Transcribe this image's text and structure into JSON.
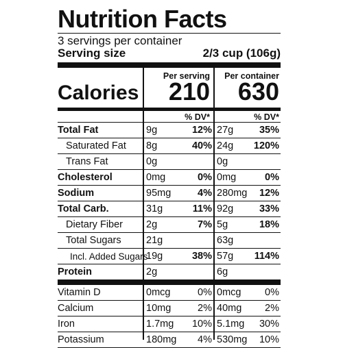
{
  "title": "Nutrition Facts",
  "servings_per_container": "3 servings per container",
  "serving_size_label": "Serving size",
  "serving_size_value": "2/3 cup (106g)",
  "columns": {
    "per_serving": "Per serving",
    "per_container": "Per container"
  },
  "calories": {
    "label": "Calories",
    "per_serving": "210",
    "per_container": "630"
  },
  "dv_header": "% DV*",
  "nutrients": [
    {
      "name": "Total Fat",
      "bold": true,
      "indent": 0,
      "amount1": "9g",
      "dv1": "12%",
      "amount2": "27g",
      "dv2": "35%"
    },
    {
      "name": "Saturated Fat",
      "bold": false,
      "indent": 1,
      "amount1": "8g",
      "dv1": "40%",
      "amount2": "24g",
      "dv2": "120%"
    },
    {
      "name": "Trans Fat",
      "bold": false,
      "indent": 1,
      "amount1": "0g",
      "dv1": "",
      "amount2": "0g",
      "dv2": ""
    },
    {
      "name": "Cholesterol",
      "bold": true,
      "indent": 0,
      "amount1": "0mg",
      "dv1": "0%",
      "amount2": "0mg",
      "dv2": "0%"
    },
    {
      "name": "Sodium",
      "bold": true,
      "indent": 0,
      "amount1": "95mg",
      "dv1": "4%",
      "amount2": "280mg",
      "dv2": "12%"
    },
    {
      "name": "Total Carb.",
      "bold": true,
      "indent": 0,
      "amount1": "31g",
      "dv1": "11%",
      "amount2": "92g",
      "dv2": "33%"
    },
    {
      "name": "Dietary Fiber",
      "bold": false,
      "indent": 1,
      "amount1": "2g",
      "dv1": "7%",
      "amount2": "5g",
      "dv2": "18%"
    },
    {
      "name": "Total Sugars",
      "bold": false,
      "indent": 1,
      "amount1": "21g",
      "dv1": "",
      "amount2": "63g",
      "dv2": ""
    },
    {
      "name": "Incl. Added Sugars",
      "bold": false,
      "indent": 2,
      "amount1": "19g",
      "dv1": "38%",
      "amount2": "57g",
      "dv2": "114%"
    },
    {
      "name": "Protein",
      "bold": true,
      "indent": 0,
      "amount1": "2g",
      "dv1": "",
      "amount2": "6g",
      "dv2": ""
    }
  ],
  "vitamins": [
    {
      "name": "Vitamin D",
      "amount1": "0mcg",
      "dv1": "0%",
      "amount2": "0mcg",
      "dv2": "0%"
    },
    {
      "name": "Calcium",
      "amount1": "10mg",
      "dv1": "2%",
      "amount2": "40mg",
      "dv2": "2%"
    },
    {
      "name": "Iron",
      "amount1": "1.7mg",
      "dv1": "10%",
      "amount2": "5.1mg",
      "dv2": "30%"
    },
    {
      "name": "Potassium",
      "amount1": "180mg",
      "dv1": "4%",
      "amount2": "530mg",
      "dv2": "10%"
    }
  ]
}
